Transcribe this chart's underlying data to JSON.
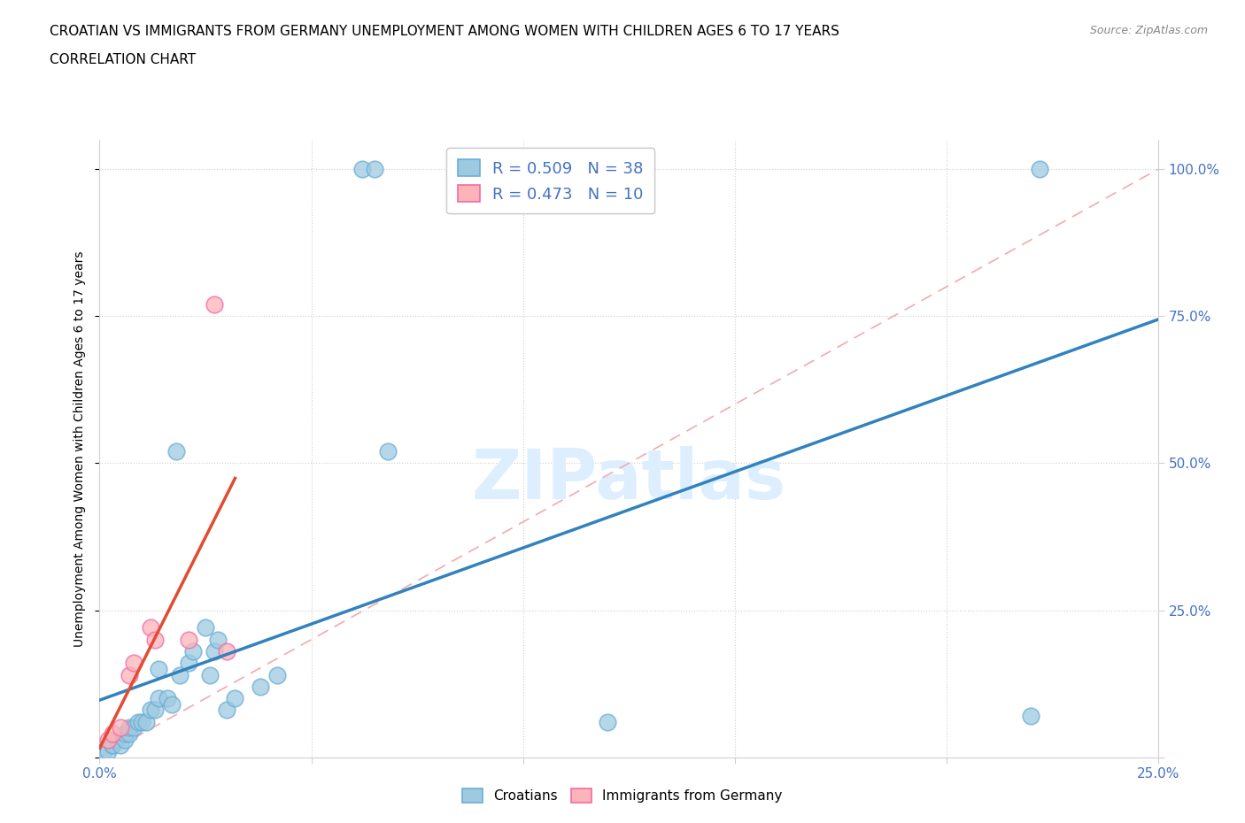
{
  "title1": "CROATIAN VS IMMIGRANTS FROM GERMANY UNEMPLOYMENT AMONG WOMEN WITH CHILDREN AGES 6 TO 17 YEARS",
  "title2": "CORRELATION CHART",
  "source": "Source: ZipAtlas.com",
  "ylabel": "Unemployment Among Women with Children Ages 6 to 17 years",
  "xlim": [
    0.0,
    0.25
  ],
  "ylim": [
    0.0,
    1.05
  ],
  "xticks": [
    0.0,
    0.05,
    0.1,
    0.15,
    0.2,
    0.25
  ],
  "yticks": [
    0.0,
    0.25,
    0.5,
    0.75,
    1.0
  ],
  "ytick_labels_right": [
    "",
    "25.0%",
    "50.0%",
    "75.0%",
    "100.0%"
  ],
  "xtick_labels": [
    "0.0%",
    "",
    "",
    "",
    "",
    "25.0%"
  ],
  "blue_R": 0.509,
  "blue_N": 38,
  "pink_R": 0.473,
  "pink_N": 10,
  "croatians_x": [
    0.001,
    0.002,
    0.003,
    0.003,
    0.004,
    0.005,
    0.006,
    0.006,
    0.007,
    0.007,
    0.008,
    0.009,
    0.01,
    0.011,
    0.012,
    0.013,
    0.014,
    0.014,
    0.016,
    0.017,
    0.018,
    0.019,
    0.021,
    0.022,
    0.025,
    0.026,
    0.027,
    0.028,
    0.03,
    0.032,
    0.038,
    0.042,
    0.062,
    0.065,
    0.068,
    0.12,
    0.22,
    0.222
  ],
  "croatians_y": [
    0.01,
    0.01,
    0.02,
    0.02,
    0.03,
    0.02,
    0.03,
    0.04,
    0.04,
    0.05,
    0.05,
    0.06,
    0.06,
    0.06,
    0.08,
    0.08,
    0.1,
    0.15,
    0.1,
    0.09,
    0.52,
    0.14,
    0.16,
    0.18,
    0.22,
    0.14,
    0.18,
    0.2,
    0.08,
    0.1,
    0.12,
    0.14,
    1.0,
    1.0,
    0.52,
    0.06,
    0.07,
    1.0
  ],
  "immigrants_x": [
    0.002,
    0.003,
    0.005,
    0.007,
    0.008,
    0.012,
    0.013,
    0.021,
    0.027,
    0.03
  ],
  "immigrants_y": [
    0.03,
    0.04,
    0.05,
    0.14,
    0.16,
    0.22,
    0.2,
    0.2,
    0.77,
    0.18
  ],
  "blue_dot_color": "#9ecae1",
  "blue_dot_edge": "#6baed6",
  "pink_dot_color": "#fbb4b9",
  "pink_dot_edge": "#f768a1",
  "blue_line_color": "#3182bd",
  "pink_line_color": "#e34a33",
  "ref_line_color": "#f4a9b0",
  "grid_color": "#d0d0d0",
  "background_color": "#ffffff",
  "watermark_color": "#ddeeff",
  "tick_color": "#4472c4"
}
